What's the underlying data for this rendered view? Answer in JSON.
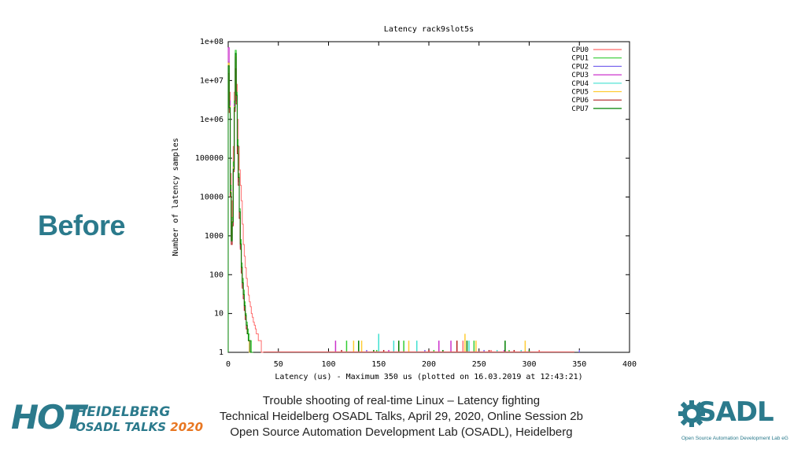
{
  "slide": {
    "heading": "Before",
    "caption": [
      "Trouble shooting of real-time Linux – Latency fighting",
      "Technical Heidelberg OSADL Talks, April 29, 2020, Online Session 2b",
      "Open Source Automation Development Lab (OSADL), Heidelberg"
    ],
    "hot_logo": {
      "mark": "HOT",
      "line1": "HEIDELBERG",
      "line2a": "OSADL TALKS ",
      "line2b": "2020"
    },
    "osadl_logo": {
      "word": "SADL",
      "subtitle": "Open Source Automation Development Lab eG"
    }
  },
  "chart_data": {
    "type": "line",
    "title": "Latency rack9slot5s",
    "xlabel": "Latency (us) - Maximum 350 us (plotted on 16.03.2019 at 12:43:21)",
    "ylabel": "Number of latency samples",
    "xlim": [
      0,
      400
    ],
    "ylim": [
      1,
      100000000
    ],
    "yscale": "log",
    "x_ticks": [
      0,
      50,
      100,
      150,
      200,
      250,
      300,
      350,
      400
    ],
    "y_ticks": [
      1,
      10,
      100,
      1000,
      10000,
      100000,
      1000000,
      10000000,
      100000000
    ],
    "y_tick_labels": [
      "1",
      "10",
      "100",
      "1000",
      "10000",
      "100000",
      "1e+06",
      "1e+07",
      "1e+08"
    ],
    "legend_position": "top-right",
    "grid": false,
    "series": [
      {
        "name": "CPU0",
        "color": "#ff6b6b",
        "x": [
          0,
          1,
          2,
          3,
          4,
          5,
          6,
          7,
          8,
          9,
          10,
          11,
          12,
          13,
          14,
          15,
          16,
          17,
          18,
          19,
          20,
          21,
          22,
          23,
          24,
          25,
          26,
          27,
          28,
          29,
          30,
          31,
          32,
          33,
          34
        ],
        "y": [
          20000000,
          5000000,
          40000,
          3000,
          8000,
          200000,
          5000000,
          30000000,
          8000000,
          1000000,
          200000,
          50000,
          20000,
          8000,
          2000,
          600,
          300,
          150,
          80,
          50,
          30,
          20,
          15,
          10,
          8,
          6,
          5,
          4,
          3,
          3,
          2,
          2,
          2,
          1,
          1
        ],
        "spikes": [
          [
            234,
            2
          ],
          [
            262,
            1
          ],
          [
            310,
            1
          ]
        ]
      },
      {
        "name": "CPU1",
        "color": "#33cc33",
        "x": [
          0,
          1,
          2,
          3,
          4,
          5,
          6,
          7,
          8,
          9,
          10,
          11,
          12,
          13,
          14,
          15,
          16,
          17,
          18,
          19,
          20,
          21,
          22,
          23,
          24
        ],
        "y": [
          30000000,
          3000000,
          20000,
          1000,
          3000,
          80000,
          3000000,
          60000000,
          5000000,
          300000,
          40000,
          5000,
          800,
          200,
          80,
          40,
          20,
          10,
          6,
          4,
          3,
          2,
          2,
          1,
          1
        ],
        "spikes": [
          [
            118,
            2
          ],
          [
            148,
            1
          ],
          [
            175,
            2
          ],
          [
            205,
            1
          ],
          [
            245,
            2
          ],
          [
            280,
            1
          ]
        ]
      },
      {
        "name": "CPU2",
        "color": "#7b68ee",
        "x": [
          0,
          1,
          2,
          3,
          4,
          5,
          6,
          7,
          8,
          9,
          10,
          11,
          12,
          13,
          14,
          15,
          16,
          17,
          18,
          19,
          20,
          21,
          22
        ],
        "y": [
          25000000,
          2000000,
          15000,
          800,
          2500,
          60000,
          2000000,
          40000000,
          4000000,
          200000,
          30000,
          4000,
          600,
          150,
          60,
          30,
          15,
          8,
          5,
          3,
          2,
          1,
          1
        ],
        "spikes": [
          [
            138,
            1
          ],
          [
            196,
            1
          ],
          [
            255,
            1
          ],
          [
            350,
            1
          ]
        ]
      },
      {
        "name": "CPU3",
        "color": "#cc33cc",
        "x": [
          0,
          1,
          2,
          3,
          4,
          5,
          6,
          7,
          8,
          9,
          10,
          11,
          12,
          13,
          14,
          15,
          16,
          17,
          18,
          19,
          20,
          21,
          22
        ],
        "y": [
          70000000,
          3000000,
          15000,
          900,
          2000,
          50000,
          2500000,
          35000000,
          3000000,
          150000,
          25000,
          3000,
          500,
          120,
          50,
          25,
          12,
          7,
          4,
          3,
          2,
          1,
          1
        ],
        "spikes": [
          [
            107,
            2
          ],
          [
            160,
            1
          ],
          [
            210,
            2
          ],
          [
            222,
            2
          ],
          [
            275,
            1
          ]
        ]
      },
      {
        "name": "CPU4",
        "color": "#40e0d0",
        "x": [
          0,
          1,
          2,
          3,
          4,
          5,
          6,
          7,
          8,
          9,
          10,
          11,
          12,
          13,
          14,
          15,
          16,
          17,
          18,
          19,
          20,
          21,
          22
        ],
        "y": [
          22000000,
          1800000,
          12000,
          700,
          2200,
          55000,
          1800000,
          38000000,
          3500000,
          180000,
          28000,
          3500,
          550,
          140,
          55,
          28,
          14,
          8,
          5,
          3,
          2,
          1,
          1
        ],
        "spikes": [
          [
            150,
            3
          ],
          [
            165,
            2
          ],
          [
            188,
            2
          ],
          [
            240,
            2
          ],
          [
            268,
            1
          ],
          [
            292,
            1
          ]
        ]
      },
      {
        "name": "CPU5",
        "color": "#ffcc33",
        "x": [
          0,
          1,
          2,
          3,
          4,
          5,
          6,
          7,
          8,
          9,
          10,
          11,
          12,
          13,
          14,
          15,
          16,
          17,
          18,
          19,
          20,
          21,
          22
        ],
        "y": [
          28000000,
          2200000,
          14000,
          800,
          2400,
          58000,
          2100000,
          42000000,
          3800000,
          190000,
          29000,
          3800,
          580,
          145,
          58,
          29,
          14,
          8,
          5,
          3,
          2,
          1,
          1
        ],
        "spikes": [
          [
            125,
            2
          ],
          [
            133,
            2
          ],
          [
            180,
            2
          ],
          [
            236,
            3
          ],
          [
            247,
            2
          ],
          [
            296,
            2
          ]
        ]
      },
      {
        "name": "CPU6",
        "color": "#b22222",
        "x": [
          0,
          1,
          2,
          3,
          4,
          5,
          6,
          7,
          8,
          9,
          10,
          11,
          12,
          13,
          14,
          15,
          16,
          17,
          18,
          19,
          20,
          21,
          22,
          23,
          24
        ],
        "y": [
          15000000,
          1500000,
          10000,
          600,
          1800,
          45000,
          1600000,
          20000000,
          2500000,
          130000,
          20000,
          2800,
          450,
          110,
          45,
          24,
          12,
          7,
          4,
          3,
          2,
          2,
          1,
          1,
          1
        ],
        "spikes": [
          [
            113,
            1
          ],
          [
            155,
            1
          ],
          [
            200,
            1
          ],
          [
            228,
            2
          ],
          [
            260,
            1
          ],
          [
            285,
            1
          ]
        ]
      },
      {
        "name": "CPU7",
        "color": "#008000",
        "x": [
          0,
          1,
          2,
          3,
          4,
          5,
          6,
          7,
          8,
          9,
          10,
          11,
          12,
          13,
          14,
          15,
          16,
          17,
          18,
          19,
          20,
          21,
          22,
          23,
          24
        ],
        "y": [
          24000000,
          2000000,
          13000,
          750,
          2300,
          52000,
          2000000,
          50000000,
          4200000,
          210000,
          32000,
          4200,
          620,
          155,
          62,
          31,
          16,
          9,
          5,
          3,
          2,
          2,
          1,
          1,
          1
        ],
        "spikes": [
          [
            130,
            2
          ],
          [
            145,
            1
          ],
          [
            170,
            2
          ],
          [
            214,
            1
          ],
          [
            238,
            2
          ],
          [
            276,
            2
          ],
          [
            300,
            1
          ]
        ]
      }
    ]
  }
}
